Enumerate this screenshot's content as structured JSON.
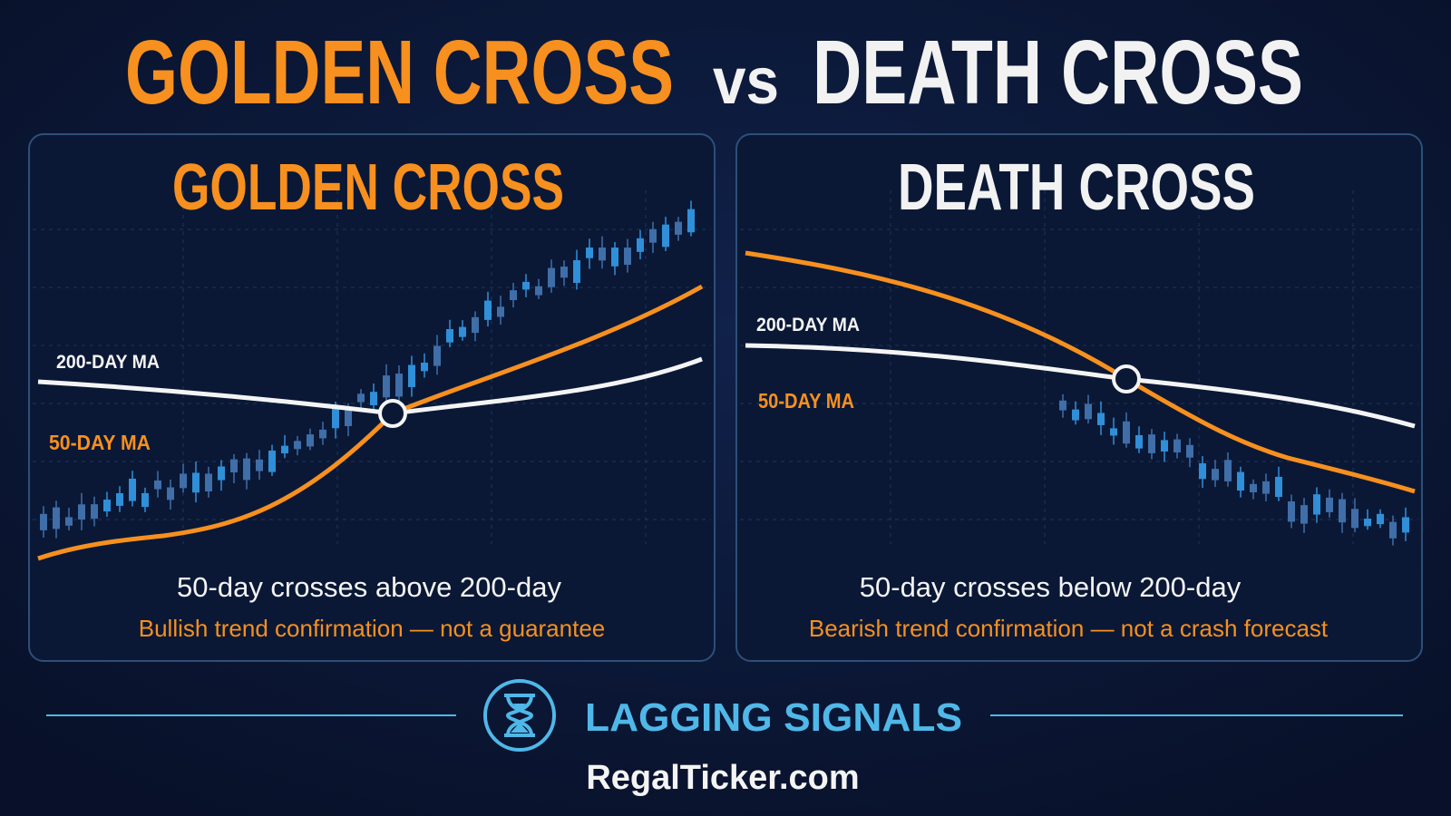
{
  "header": {
    "title_left": "GOLDEN CROSS",
    "title_mid": "vs",
    "title_right": "DEATH CROSS"
  },
  "panels": [
    {
      "title": "GOLDEN CROSS",
      "ma_200": "200-DAY MA",
      "ma_50": "50-DAY MA",
      "caption": "50-day crosses above 200-day",
      "subcaption": "Bullish trend confirmation — not a guarantee"
    },
    {
      "title": "DEATH CROSS",
      "ma_200": "200-DAY MA",
      "ma_50": "50-DAY MA",
      "caption": "50-day crosses below 200-day",
      "subcaption": "Bearish trend confirmation — not a crash forecast"
    }
  ],
  "footer": {
    "signal": "LAGGING SIGNALS",
    "site": "RegalTicker.com"
  }
}
